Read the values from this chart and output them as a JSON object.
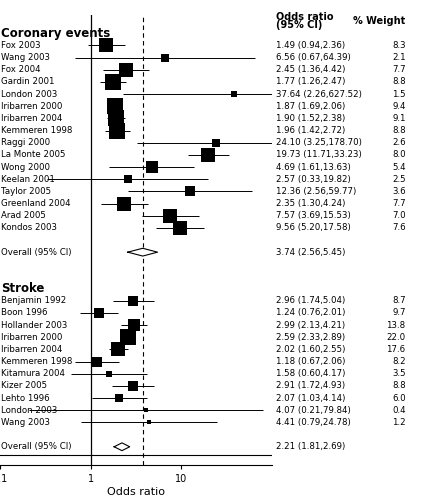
{
  "coronary_studies": [
    {
      "label": "Fox 2003",
      "or": 1.49,
      "lo": 0.94,
      "hi": 2.36,
      "weight": 8.3
    },
    {
      "label": "Wang 2003",
      "or": 6.56,
      "lo": 0.67,
      "hi": 64.39,
      "weight": 2.1
    },
    {
      "label": "Fox 2004",
      "or": 2.45,
      "lo": 1.36,
      "hi": 4.42,
      "weight": 7.7
    },
    {
      "label": "Gardin 2001",
      "or": 1.77,
      "lo": 1.26,
      "hi": 2.47,
      "weight": 8.8
    },
    {
      "label": "London 2003",
      "or": 37.64,
      "lo": 2.26,
      "hi": 627.52,
      "weight": 1.5
    },
    {
      "label": "Iribarren 2000",
      "or": 1.87,
      "lo": 1.69,
      "hi": 2.06,
      "weight": 9.4
    },
    {
      "label": "Iribarren 2004",
      "or": 1.9,
      "lo": 1.52,
      "hi": 2.38,
      "weight": 9.1
    },
    {
      "label": "Kemmeren 1998",
      "or": 1.96,
      "lo": 1.42,
      "hi": 2.72,
      "weight": 8.8
    },
    {
      "label": "Raggi 2000",
      "or": 24.1,
      "lo": 3.25,
      "hi": 178.7,
      "weight": 2.6
    },
    {
      "label": "La Monte 2005",
      "or": 19.73,
      "lo": 11.71,
      "hi": 33.23,
      "weight": 8.0
    },
    {
      "label": "Wong 2000",
      "or": 4.69,
      "lo": 1.61,
      "hi": 13.63,
      "weight": 5.4
    },
    {
      "label": "Keelan 2001",
      "or": 2.57,
      "lo": 0.33,
      "hi": 19.82,
      "weight": 2.5
    },
    {
      "label": "Taylor 2005",
      "or": 12.36,
      "lo": 2.56,
      "hi": 59.77,
      "weight": 3.6
    },
    {
      "label": "Greenland 2004",
      "or": 2.35,
      "lo": 1.3,
      "hi": 4.24,
      "weight": 7.7
    },
    {
      "label": "Arad 2005",
      "or": 7.57,
      "lo": 3.69,
      "hi": 15.53,
      "weight": 7.0
    },
    {
      "label": "Kondos 2003",
      "or": 9.56,
      "lo": 5.2,
      "hi": 17.58,
      "weight": 7.6
    }
  ],
  "coronary_overall": {
    "or": 3.74,
    "lo": 2.56,
    "hi": 5.45,
    "label": "Overall (95% CI)"
  },
  "stroke_studies": [
    {
      "label": "Benjamin 1992",
      "or": 2.96,
      "lo": 1.74,
      "hi": 5.04,
      "weight": 8.7
    },
    {
      "label": "Boon 1996",
      "or": 1.24,
      "lo": 0.76,
      "hi": 2.01,
      "weight": 9.7
    },
    {
      "label": "Hollander 2003",
      "or": 2.99,
      "lo": 2.13,
      "hi": 4.21,
      "weight": 13.8
    },
    {
      "label": "Iribarren 2000",
      "or": 2.59,
      "lo": 2.33,
      "hi": 2.89,
      "weight": 22.0
    },
    {
      "label": "Iribarren 2004",
      "or": 2.02,
      "lo": 1.6,
      "hi": 2.55,
      "weight": 17.6
    },
    {
      "label": "Kemmeren 1998",
      "or": 1.18,
      "lo": 0.67,
      "hi": 2.06,
      "weight": 8.2
    },
    {
      "label": "Kitamura 2004",
      "or": 1.58,
      "lo": 0.6,
      "hi": 4.17,
      "weight": 3.5
    },
    {
      "label": "Kizer 2005",
      "or": 2.91,
      "lo": 1.72,
      "hi": 4.93,
      "weight": 8.8
    },
    {
      "label": "Lehto 1996",
      "or": 2.07,
      "lo": 1.03,
      "hi": 4.14,
      "weight": 6.0
    },
    {
      "label": "London 2003",
      "or": 4.07,
      "lo": 0.21,
      "hi": 79.84,
      "weight": 0.4
    },
    {
      "label": "Wang 2003",
      "or": 4.41,
      "lo": 0.79,
      "hi": 24.78,
      "weight": 1.2
    }
  ],
  "stroke_overall": {
    "or": 2.21,
    "lo": 1.81,
    "hi": 2.69,
    "label": "Overall (95% CI)"
  },
  "xmin": 0.1,
  "xmax": 100,
  "ref_line": 1.0,
  "dashed_or": 3.74,
  "header_or": "Odds ratio\n(95% CI)",
  "header_w": "% Weight",
  "xlabel": "Odds ratio",
  "cor_title": "Coronary events",
  "str_title": "Stroke"
}
